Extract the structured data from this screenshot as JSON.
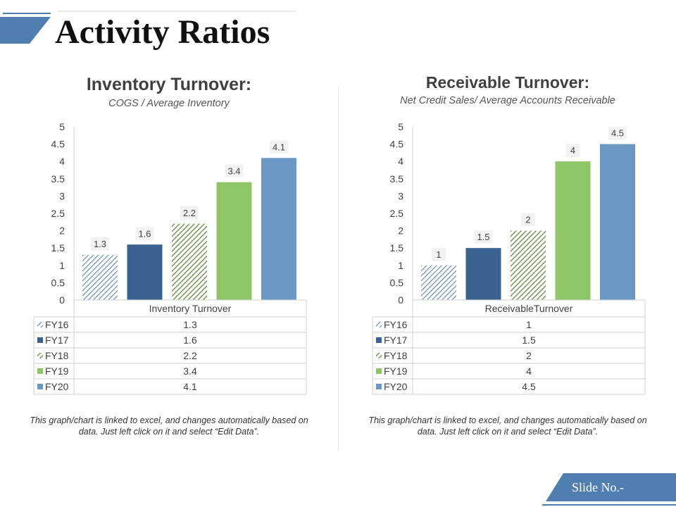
{
  "slide": {
    "title": "Activity Ratios",
    "slide_number_label": "Slide No.-"
  },
  "colors": {
    "FY16": "#5c85b4",
    "FY17": "#3a6290",
    "FY18": "#5e8c3c",
    "FY19": "#8ec565",
    "FY20": "#6b97c4",
    "header": "#4f7fb0"
  },
  "chart_data": [
    {
      "type": "bar",
      "title": "Inventory Turnover:",
      "subtitle": "COGS / Average Inventory",
      "categories": [
        "Inventory Turnover"
      ],
      "series": [
        {
          "name": "FY16",
          "values": [
            1.3
          ]
        },
        {
          "name": "FY17",
          "values": [
            1.6
          ]
        },
        {
          "name": "FY18",
          "values": [
            2.2
          ]
        },
        {
          "name": "FY19",
          "values": [
            3.4
          ]
        },
        {
          "name": "FY20",
          "values": [
            4.1
          ]
        }
      ],
      "data_labels": [
        "1.3",
        "1.6",
        "2.2",
        "3.4",
        "4.1"
      ],
      "y_ticks": [
        "0",
        "0.5",
        "1",
        "1.5",
        "2",
        "2.5",
        "3",
        "3.5",
        "4",
        "4.5",
        "5"
      ],
      "ylim": [
        0,
        5
      ],
      "grid": false,
      "data_table": true,
      "note": "This graph/chart is linked to excel, and changes automatically based on data. Just left click on it and select “Edit Data”."
    },
    {
      "type": "bar",
      "title": "Receivable Turnover:",
      "subtitle": "Net Credit Sales/ Average Accounts Receivable",
      "categories": [
        "ReceivableTurnover"
      ],
      "series": [
        {
          "name": "FY16",
          "values": [
            1
          ]
        },
        {
          "name": "FY17",
          "values": [
            1.5
          ]
        },
        {
          "name": "FY18",
          "values": [
            2
          ]
        },
        {
          "name": "FY19",
          "values": [
            4
          ]
        },
        {
          "name": "FY20",
          "values": [
            4.5
          ]
        }
      ],
      "data_labels": [
        "1",
        "1.5",
        "2",
        "4",
        "4.5"
      ],
      "y_ticks": [
        "0",
        "0.5",
        "1",
        "1.5",
        "2",
        "2.5",
        "3",
        "3.5",
        "4",
        "4.5",
        "5"
      ],
      "ylim": [
        0,
        5
      ],
      "grid": false,
      "data_table": true,
      "note": "This graph/chart is linked to excel, and changes automatically based on data. Just left click on it and select “Edit Data”."
    }
  ]
}
